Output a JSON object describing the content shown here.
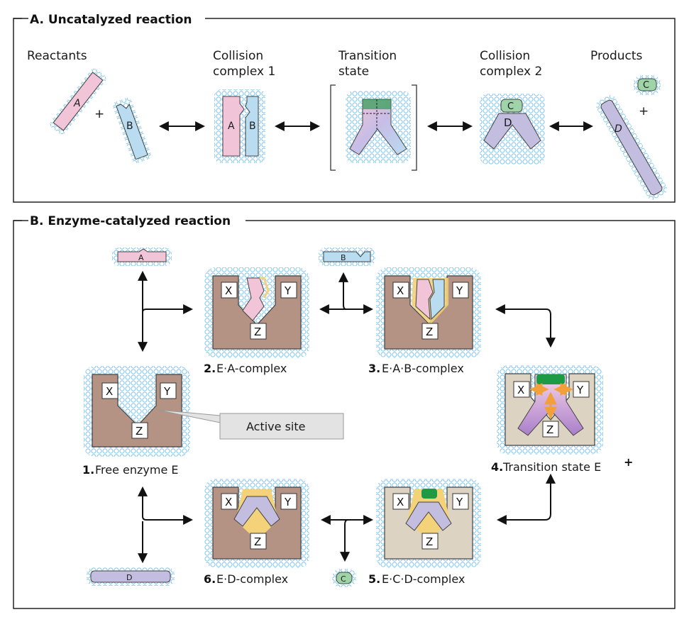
{
  "section_a": {
    "title": "A. Uncatalyzed reaction",
    "labels": {
      "reactants": "Reactants",
      "collision1_line1": "Collision",
      "collision1_line2": "complex 1",
      "transition_line1": "Transition",
      "transition_line2": "state",
      "collision2_line1": "Collision",
      "collision2_line2": "complex 2",
      "products": "Products"
    },
    "molecules": {
      "a": "A",
      "b": "B",
      "c": "C",
      "d": "D",
      "plus": "+"
    }
  },
  "section_b": {
    "title": "B. Enzyme-catalyzed reaction",
    "site_labels": {
      "x": "X",
      "y": "Y",
      "z": "Z"
    },
    "callout": "Active site",
    "states": {
      "s1_num": "1.",
      "s1_text": "Free enzyme E",
      "s2_num": "2.",
      "s2_text": "E·A-complex",
      "s3_num": "3.",
      "s3_text": "E·A·B-complex",
      "s4_num": "4.",
      "s4_text": "Transition state E",
      "s4_sup": "+",
      "s5_num": "5.",
      "s5_text": "E·C·D-complex",
      "s6_num": "6.",
      "s6_text": "E·D-complex"
    },
    "free_molecules": {
      "a": "A",
      "b": "B",
      "c": "C",
      "d": "D"
    }
  },
  "colors": {
    "frame": "#222222",
    "water": "#7fc4e6",
    "molecule_a": "#f2c4d8",
    "molecule_b": "#b9dcf0",
    "molecule_c": "#9fd4a8",
    "molecule_d": "#c3bde0",
    "enzyme_brown": "#b49284",
    "enzyme_beige": "#dcd3c3",
    "binding_yellow": "#f4d27a",
    "green_product": "#1e9a45",
    "arrow_orange": "#f2a03a",
    "callout_gray": "#e3e3e3"
  }
}
